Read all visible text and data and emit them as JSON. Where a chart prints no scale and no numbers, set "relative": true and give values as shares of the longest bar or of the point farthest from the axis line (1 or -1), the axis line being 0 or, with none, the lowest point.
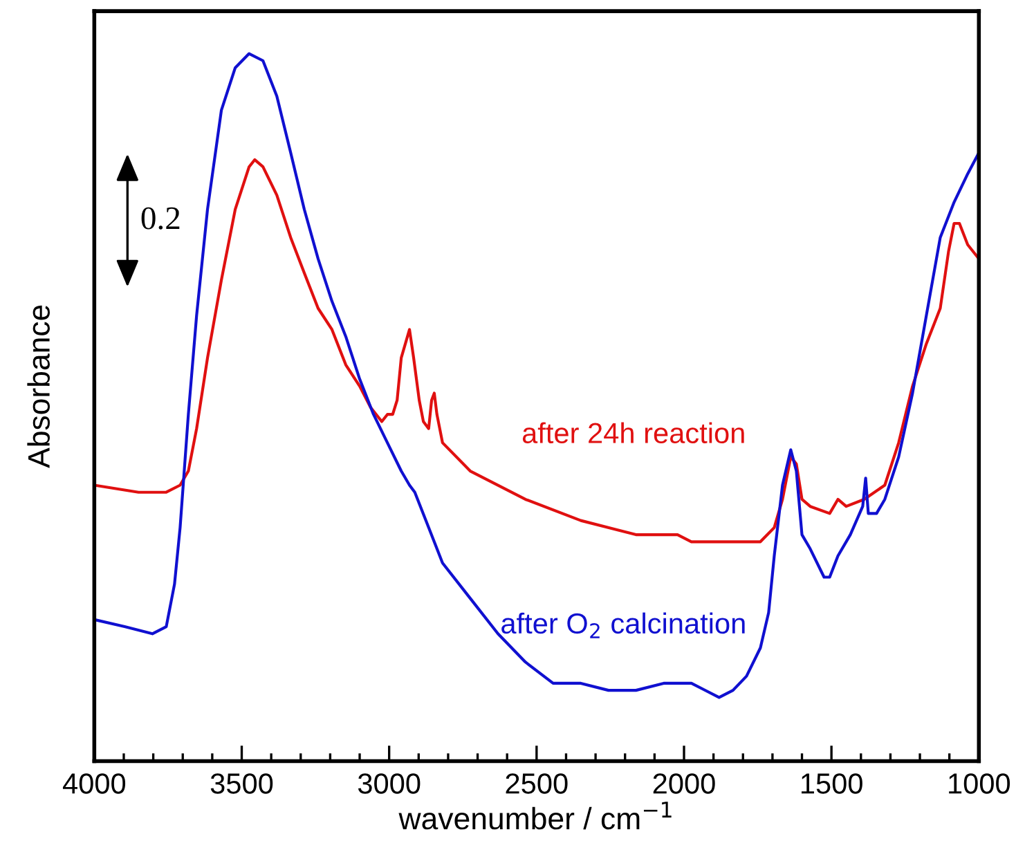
{
  "chart_data": {
    "type": "line",
    "relative": true,
    "xlabel": "wavenumber / cm$^{−1}$",
    "ylabel": "Absorbance",
    "xlim": [
      4000,
      1000
    ],
    "xticks": [
      4000,
      3500,
      3000,
      2500,
      2000,
      1500,
      1000
    ],
    "annotations": [
      "0.2"
    ],
    "series": [
      {
        "name": "after 24h reaction",
        "color": "#e01010",
        "x": [
          4000,
          3850,
          3756,
          3709,
          3681,
          3653,
          3616,
          3569,
          3522,
          3475,
          3456,
          3428,
          3381,
          3334,
          3288,
          3241,
          3194,
          3147,
          3100,
          3063,
          3025,
          3006,
          2988,
          2973,
          2959,
          2931,
          2917,
          2898,
          2884,
          2866,
          2856,
          2847,
          2838,
          2819,
          2725,
          2538,
          2350,
          2163,
          2022,
          1975,
          1834,
          1741,
          1694,
          1666,
          1638,
          1619,
          1600,
          1572,
          1506,
          1478,
          1450,
          1389,
          1319,
          1272,
          1225,
          1178,
          1131,
          1103,
          1084,
          1066,
          1038,
          1000
        ],
        "values": [
          0.39,
          0.38,
          0.38,
          0.39,
          0.41,
          0.47,
          0.57,
          0.68,
          0.78,
          0.84,
          0.85,
          0.84,
          0.8,
          0.74,
          0.69,
          0.64,
          0.61,
          0.56,
          0.53,
          0.5,
          0.48,
          0.49,
          0.49,
          0.51,
          0.57,
          0.61,
          0.57,
          0.51,
          0.48,
          0.47,
          0.51,
          0.52,
          0.49,
          0.45,
          0.41,
          0.37,
          0.34,
          0.32,
          0.32,
          0.31,
          0.31,
          0.31,
          0.33,
          0.37,
          0.43,
          0.42,
          0.37,
          0.36,
          0.35,
          0.37,
          0.36,
          0.37,
          0.39,
          0.45,
          0.53,
          0.59,
          0.64,
          0.72,
          0.76,
          0.76,
          0.73,
          0.71
        ]
      },
      {
        "name": "after O$_{2}$ calcination",
        "color": "#1010d0",
        "x": [
          4000,
          3897,
          3803,
          3756,
          3728,
          3709,
          3681,
          3653,
          3616,
          3569,
          3522,
          3475,
          3428,
          3381,
          3334,
          3288,
          3241,
          3194,
          3147,
          3100,
          3053,
          3006,
          2959,
          2931,
          2913,
          2866,
          2819,
          2725,
          2631,
          2538,
          2444,
          2350,
          2256,
          2163,
          2069,
          1975,
          1881,
          1834,
          1788,
          1741,
          1713,
          1694,
          1666,
          1638,
          1619,
          1600,
          1572,
          1525,
          1506,
          1478,
          1436,
          1394,
          1384,
          1375,
          1347,
          1319,
          1272,
          1225,
          1178,
          1131,
          1084,
          1038,
          1000
        ],
        "values": [
          0.2,
          0.19,
          0.18,
          0.19,
          0.25,
          0.33,
          0.49,
          0.63,
          0.78,
          0.92,
          0.98,
          1.0,
          0.99,
          0.94,
          0.86,
          0.78,
          0.71,
          0.65,
          0.6,
          0.54,
          0.49,
          0.45,
          0.41,
          0.39,
          0.38,
          0.33,
          0.28,
          0.23,
          0.18,
          0.14,
          0.11,
          0.11,
          0.1,
          0.1,
          0.11,
          0.11,
          0.09,
          0.1,
          0.12,
          0.16,
          0.21,
          0.29,
          0.39,
          0.44,
          0.41,
          0.32,
          0.3,
          0.26,
          0.26,
          0.29,
          0.32,
          0.36,
          0.4,
          0.35,
          0.35,
          0.37,
          0.43,
          0.52,
          0.63,
          0.74,
          0.79,
          0.83,
          0.86
        ]
      }
    ]
  }
}
